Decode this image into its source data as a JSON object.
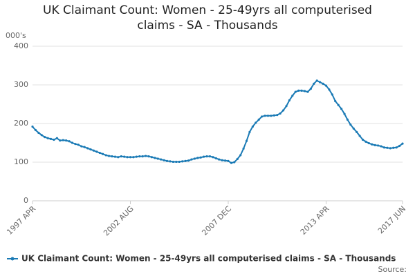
{
  "chart_data": {
    "type": "line",
    "title": "UK Claimant Count: Women - 25-49yrs all computerised claims - SA - Thousands",
    "y_label": "000's",
    "source": "Source:",
    "categories": [
      "1997 APR",
      null,
      null,
      null,
      null,
      null,
      null,
      null,
      null,
      null,
      null,
      null,
      null,
      null,
      null,
      null,
      null,
      null,
      null,
      null,
      null,
      null,
      null,
      null,
      null,
      null,
      null,
      null,
      null,
      null,
      null,
      null,
      "2002 AUG",
      null,
      null,
      null,
      null,
      null,
      null,
      null,
      null,
      null,
      null,
      null,
      null,
      null,
      null,
      null,
      null,
      null,
      null,
      null,
      null,
      null,
      null,
      null,
      null,
      null,
      null,
      null,
      null,
      null,
      null,
      null,
      "2007 DEC",
      null,
      null,
      null,
      null,
      null,
      null,
      null,
      null,
      null,
      null,
      null,
      null,
      null,
      null,
      null,
      null,
      null,
      null,
      null,
      null,
      null,
      null,
      null,
      null,
      null,
      null,
      null,
      null,
      null,
      null,
      null,
      "2013 APR",
      null,
      null,
      null,
      null,
      null,
      null,
      null,
      null,
      null,
      null,
      null,
      null,
      null,
      null,
      null,
      null,
      null,
      null,
      null,
      null,
      null,
      null,
      null,
      null,
      "2017 JUN"
    ],
    "series": [
      {
        "name": "UK Claimant Count: Women - 25-49yrs all computerised claims - SA - Thousands",
        "color": "#1a7ab5",
        "values": [
          192,
          183,
          176,
          170,
          165,
          162,
          160,
          158,
          162,
          156,
          157,
          156,
          154,
          150,
          147,
          145,
          141,
          139,
          136,
          133,
          130,
          127,
          124,
          121,
          118,
          116,
          115,
          114,
          113,
          115,
          114,
          113,
          113,
          113,
          114,
          115,
          115,
          116,
          115,
          113,
          111,
          109,
          107,
          105,
          103,
          102,
          101,
          101,
          101,
          102,
          103,
          104,
          107,
          109,
          111,
          112,
          114,
          115,
          115,
          113,
          110,
          107,
          105,
          104,
          103,
          98,
          100,
          108,
          118,
          135,
          155,
          178,
          192,
          202,
          210,
          218,
          220,
          220,
          220,
          221,
          222,
          226,
          234,
          245,
          260,
          272,
          282,
          285,
          285,
          284,
          282,
          290,
          303,
          311,
          307,
          303,
          298,
          288,
          275,
          258,
          248,
          238,
          225,
          210,
          197,
          187,
          178,
          168,
          158,
          153,
          149,
          146,
          144,
          143,
          141,
          138,
          137,
          136,
          137,
          138,
          142,
          148
        ]
      }
    ],
    "ylim": [
      0,
      400
    ],
    "yticks": [
      0,
      100,
      200,
      300,
      400
    ],
    "grid": true
  }
}
